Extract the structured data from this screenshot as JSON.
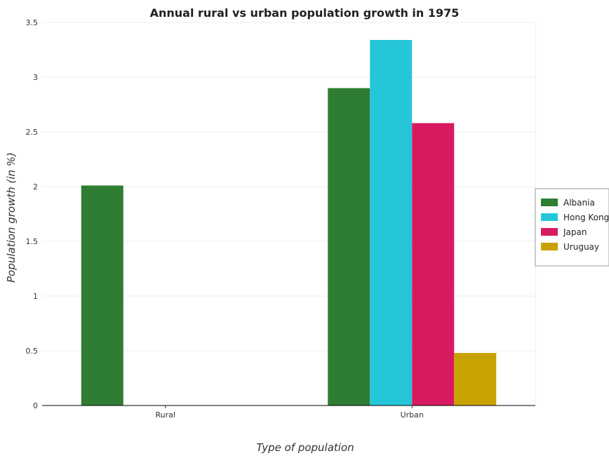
{
  "chart_data": {
    "type": "bar",
    "title": "Annual rural vs urban population growth in 1975",
    "xlabel": "Type of population",
    "ylabel": "Population growth (in %)",
    "categories": [
      "Rural",
      "Urban"
    ],
    "ylim": [
      0,
      3.5
    ],
    "yticks": [
      "0",
      "0.5",
      "1",
      "1.5",
      "2",
      "2.5",
      "3",
      "3.5"
    ],
    "grid": true,
    "legend_position": "right",
    "series": [
      {
        "name": "Albania",
        "color": "#2e7d32",
        "values": [
          2.01,
          2.9
        ]
      },
      {
        "name": "Hong Kong",
        "color": "#26c6da",
        "values": [
          0,
          3.34
        ]
      },
      {
        "name": "Japan",
        "color": "#d81b60",
        "values": [
          0,
          2.58
        ]
      },
      {
        "name": "Uruguay",
        "color": "#c8a200",
        "values": [
          0,
          0.48
        ]
      }
    ]
  }
}
